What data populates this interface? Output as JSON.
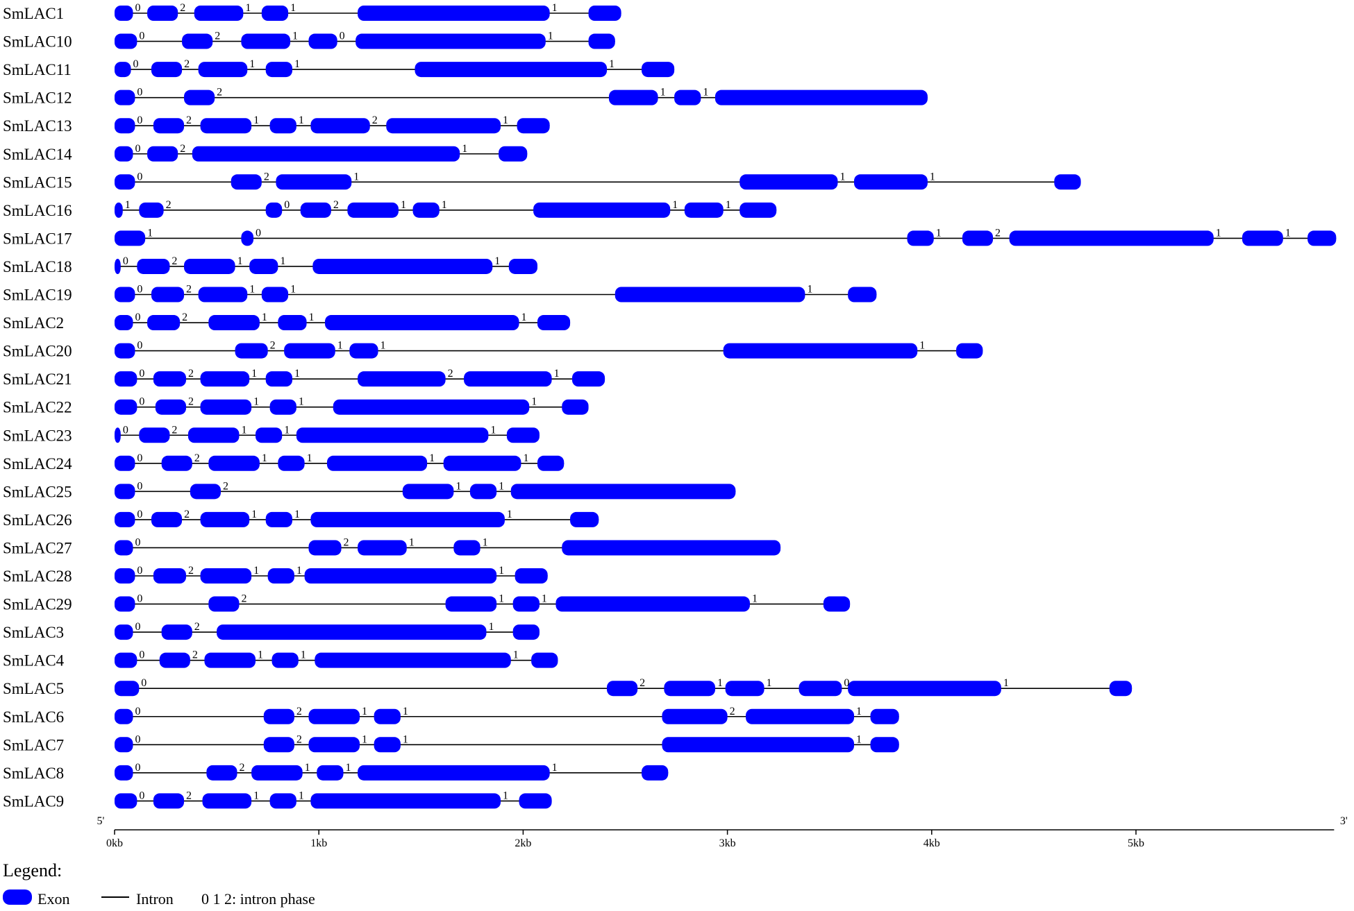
{
  "diagram": {
    "unit": "kb",
    "exon_color": "#0000ff",
    "intron_color": "#000000",
    "axis": {
      "end_labels": [
        "5'",
        "3'"
      ],
      "ticks": [
        {
          "value": 0,
          "label": "0kb"
        },
        {
          "value": 1,
          "label": "1kb"
        },
        {
          "value": 2,
          "label": "2kb"
        },
        {
          "value": 3,
          "label": "3kb"
        },
        {
          "value": 4,
          "label": "4kb"
        },
        {
          "value": 5,
          "label": "5kb"
        }
      ],
      "max": 5.97
    },
    "genes": [
      {
        "name": "SmLAC1",
        "exons": [
          [
            0,
            0.09
          ],
          [
            0.16,
            0.31
          ],
          [
            0.39,
            0.63
          ],
          [
            0.72,
            0.85
          ],
          [
            1.19,
            2.13
          ],
          [
            2.32,
            2.48
          ]
        ],
        "phases": [
          "0",
          "2",
          "1",
          "1",
          "1"
        ]
      },
      {
        "name": "SmLAC10",
        "exons": [
          [
            0,
            0.11
          ],
          [
            0.33,
            0.48
          ],
          [
            0.62,
            0.86
          ],
          [
            0.95,
            1.09
          ],
          [
            1.18,
            2.11
          ],
          [
            2.32,
            2.45
          ]
        ],
        "phases": [
          "0",
          "2",
          "1",
          "0",
          "1"
        ]
      },
      {
        "name": "SmLAC11",
        "exons": [
          [
            0,
            0.08
          ],
          [
            0.18,
            0.33
          ],
          [
            0.41,
            0.65
          ],
          [
            0.74,
            0.87
          ],
          [
            1.47,
            2.41
          ],
          [
            2.58,
            2.74
          ]
        ],
        "phases": [
          "0",
          "2",
          "1",
          "1",
          "1"
        ]
      },
      {
        "name": "SmLAC12",
        "exons": [
          [
            0,
            0.1
          ],
          [
            0.34,
            0.49
          ],
          [
            2.42,
            2.66
          ],
          [
            2.74,
            2.87
          ],
          [
            2.94,
            3.98
          ]
        ],
        "phases": [
          "0",
          "2",
          "1",
          "1"
        ]
      },
      {
        "name": "SmLAC13",
        "exons": [
          [
            0,
            0.1
          ],
          [
            0.19,
            0.34
          ],
          [
            0.42,
            0.67
          ],
          [
            0.76,
            0.89
          ],
          [
            0.96,
            1.25
          ],
          [
            1.33,
            1.89
          ],
          [
            1.97,
            2.13
          ]
        ],
        "phases": [
          "0",
          "2",
          "1",
          "1",
          "2",
          "1"
        ]
      },
      {
        "name": "SmLAC14",
        "exons": [
          [
            0,
            0.09
          ],
          [
            0.16,
            0.31
          ],
          [
            0.38,
            1.69
          ],
          [
            1.88,
            2.02
          ]
        ],
        "phases": [
          "0",
          "2",
          "1"
        ]
      },
      {
        "name": "SmLAC15",
        "exons": [
          [
            0,
            0.1
          ],
          [
            0.57,
            0.72
          ],
          [
            0.79,
            1.16
          ],
          [
            3.06,
            3.54
          ],
          [
            3.62,
            3.98
          ],
          [
            4.6,
            4.73
          ]
        ],
        "phases": [
          "0",
          "2",
          "1",
          "1",
          "1"
        ]
      },
      {
        "name": "SmLAC16",
        "exons": [
          [
            0,
            0.04
          ],
          [
            0.12,
            0.24
          ],
          [
            0.74,
            0.82
          ],
          [
            0.91,
            1.06
          ],
          [
            1.14,
            1.39
          ],
          [
            1.46,
            1.59
          ],
          [
            2.05,
            2.72
          ],
          [
            2.79,
            2.98
          ],
          [
            3.06,
            3.24
          ]
        ],
        "phases": [
          "1",
          "2",
          "0",
          "2",
          "1",
          "1",
          "1",
          "1"
        ]
      },
      {
        "name": "SmLAC17",
        "exons": [
          [
            0,
            0.15
          ],
          [
            0.62,
            0.68
          ],
          [
            3.88,
            4.01
          ],
          [
            4.15,
            4.3
          ],
          [
            4.38,
            5.38
          ],
          [
            5.52,
            5.72
          ],
          [
            5.84,
            5.98
          ]
        ],
        "phases": [
          "1",
          "0",
          "1",
          "2",
          "1",
          "1"
        ]
      },
      {
        "name": "SmLAC18",
        "exons": [
          [
            0,
            0.03
          ],
          [
            0.11,
            0.27
          ],
          [
            0.34,
            0.59
          ],
          [
            0.66,
            0.8
          ],
          [
            0.97,
            1.85
          ],
          [
            1.93,
            2.07
          ]
        ],
        "phases": [
          "0",
          "2",
          "1",
          "1",
          "1"
        ]
      },
      {
        "name": "SmLAC19",
        "exons": [
          [
            0,
            0.1
          ],
          [
            0.18,
            0.34
          ],
          [
            0.41,
            0.65
          ],
          [
            0.72,
            0.85
          ],
          [
            2.45,
            3.38
          ],
          [
            3.59,
            3.73
          ]
        ],
        "phases": [
          "0",
          "2",
          "1",
          "1",
          "1"
        ]
      },
      {
        "name": "SmLAC2",
        "exons": [
          [
            0,
            0.09
          ],
          [
            0.16,
            0.32
          ],
          [
            0.46,
            0.71
          ],
          [
            0.8,
            0.94
          ],
          [
            1.03,
            1.98
          ],
          [
            2.07,
            2.23
          ]
        ],
        "phases": [
          "0",
          "2",
          "1",
          "1",
          "1"
        ]
      },
      {
        "name": "SmLAC20",
        "exons": [
          [
            0,
            0.1
          ],
          [
            0.59,
            0.75
          ],
          [
            0.83,
            1.08
          ],
          [
            1.15,
            1.29
          ],
          [
            2.98,
            3.93
          ],
          [
            4.12,
            4.25
          ]
        ],
        "phases": [
          "0",
          "2",
          "1",
          "1",
          "1"
        ]
      },
      {
        "name": "SmLAC21",
        "exons": [
          [
            0,
            0.11
          ],
          [
            0.19,
            0.35
          ],
          [
            0.42,
            0.66
          ],
          [
            0.74,
            0.87
          ],
          [
            1.19,
            1.62
          ],
          [
            1.71,
            2.14
          ],
          [
            2.24,
            2.4
          ]
        ],
        "phases": [
          "0",
          "2",
          "1",
          "1",
          "2",
          "1"
        ]
      },
      {
        "name": "SmLAC22",
        "exons": [
          [
            0,
            0.11
          ],
          [
            0.2,
            0.35
          ],
          [
            0.42,
            0.67
          ],
          [
            0.76,
            0.89
          ],
          [
            1.07,
            2.03
          ],
          [
            2.19,
            2.32
          ]
        ],
        "phases": [
          "0",
          "2",
          "1",
          "1",
          "1"
        ]
      },
      {
        "name": "SmLAC23",
        "exons": [
          [
            0,
            0.03
          ],
          [
            0.12,
            0.27
          ],
          [
            0.36,
            0.61
          ],
          [
            0.69,
            0.82
          ],
          [
            0.89,
            1.83
          ],
          [
            1.92,
            2.08
          ]
        ],
        "phases": [
          "0",
          "2",
          "1",
          "1",
          "1"
        ]
      },
      {
        "name": "SmLAC24",
        "exons": [
          [
            0,
            0.1
          ],
          [
            0.23,
            0.38
          ],
          [
            0.46,
            0.71
          ],
          [
            0.8,
            0.93
          ],
          [
            1.04,
            1.53
          ],
          [
            1.61,
            1.99
          ],
          [
            2.07,
            2.2
          ]
        ],
        "phases": [
          "0",
          "2",
          "1",
          "1",
          "1",
          "1"
        ]
      },
      {
        "name": "SmLAC25",
        "exons": [
          [
            0,
            0.1
          ],
          [
            0.37,
            0.52
          ],
          [
            1.41,
            1.66
          ],
          [
            1.74,
            1.87
          ],
          [
            1.94,
            3.04
          ]
        ],
        "phases": [
          "0",
          "2",
          "1",
          "1"
        ]
      },
      {
        "name": "SmLAC26",
        "exons": [
          [
            0,
            0.1
          ],
          [
            0.18,
            0.33
          ],
          [
            0.42,
            0.66
          ],
          [
            0.74,
            0.87
          ],
          [
            0.96,
            1.91
          ],
          [
            2.23,
            2.37
          ]
        ],
        "phases": [
          "0",
          "2",
          "1",
          "1",
          "1"
        ]
      },
      {
        "name": "SmLAC27",
        "exons": [
          [
            0,
            0.09
          ],
          [
            0.95,
            1.11
          ],
          [
            1.19,
            1.43
          ],
          [
            1.66,
            1.79
          ],
          [
            2.19,
            3.26
          ]
        ],
        "phases": [
          "0",
          "2",
          "1",
          "1"
        ]
      },
      {
        "name": "SmLAC28",
        "exons": [
          [
            0,
            0.1
          ],
          [
            0.19,
            0.35
          ],
          [
            0.42,
            0.67
          ],
          [
            0.75,
            0.88
          ],
          [
            0.93,
            1.87
          ],
          [
            1.96,
            2.12
          ]
        ],
        "phases": [
          "0",
          "2",
          "1",
          "1",
          "1"
        ]
      },
      {
        "name": "SmLAC29",
        "exons": [
          [
            0,
            0.1
          ],
          [
            0.46,
            0.61
          ],
          [
            1.62,
            1.87
          ],
          [
            1.95,
            2.08
          ],
          [
            2.16,
            3.11
          ],
          [
            3.47,
            3.6
          ]
        ],
        "phases": [
          "0",
          "2",
          "1",
          "1",
          "1"
        ]
      },
      {
        "name": "SmLAC3",
        "exons": [
          [
            0,
            0.09
          ],
          [
            0.23,
            0.38
          ],
          [
            0.5,
            1.82
          ],
          [
            1.95,
            2.08
          ]
        ],
        "phases": [
          "0",
          "2",
          "1"
        ]
      },
      {
        "name": "SmLAC4",
        "exons": [
          [
            0,
            0.11
          ],
          [
            0.22,
            0.37
          ],
          [
            0.44,
            0.69
          ],
          [
            0.77,
            0.9
          ],
          [
            0.98,
            1.94
          ],
          [
            2.04,
            2.17
          ]
        ],
        "phases": [
          "0",
          "2",
          "1",
          "1",
          "1"
        ]
      },
      {
        "name": "SmLAC5",
        "exons": [
          [
            0,
            0.12
          ],
          [
            2.41,
            2.56
          ],
          [
            2.69,
            2.94
          ],
          [
            2.99,
            3.18
          ],
          [
            3.35,
            3.56
          ],
          [
            3.59,
            4.34
          ],
          [
            4.87,
            4.98
          ]
        ],
        "phases": [
          "0",
          "2",
          "1",
          "1",
          "0",
          "1"
        ]
      },
      {
        "name": "SmLAC6",
        "exons": [
          [
            0,
            0.09
          ],
          [
            0.73,
            0.88
          ],
          [
            0.95,
            1.2
          ],
          [
            1.27,
            1.4
          ],
          [
            2.68,
            3.0
          ],
          [
            3.09,
            3.62
          ],
          [
            3.7,
            3.84
          ]
        ],
        "phases": [
          "0",
          "2",
          "1",
          "1",
          "2",
          "1"
        ]
      },
      {
        "name": "SmLAC7",
        "exons": [
          [
            0,
            0.09
          ],
          [
            0.73,
            0.88
          ],
          [
            0.95,
            1.2
          ],
          [
            1.27,
            1.4
          ],
          [
            2.68,
            3.62
          ],
          [
            3.7,
            3.84
          ]
        ],
        "phases": [
          "0",
          "2",
          "1",
          "1",
          "1"
        ]
      },
      {
        "name": "SmLAC8",
        "exons": [
          [
            0,
            0.09
          ],
          [
            0.45,
            0.6
          ],
          [
            0.67,
            0.92
          ],
          [
            0.99,
            1.12
          ],
          [
            1.19,
            2.13
          ],
          [
            2.58,
            2.71
          ]
        ],
        "phases": [
          "0",
          "2",
          "1",
          "1",
          "1"
        ]
      },
      {
        "name": "SmLAC9",
        "exons": [
          [
            0,
            0.11
          ],
          [
            0.19,
            0.34
          ],
          [
            0.43,
            0.67
          ],
          [
            0.76,
            0.89
          ],
          [
            0.96,
            1.89
          ],
          [
            1.98,
            2.14
          ]
        ],
        "phases": [
          "0",
          "2",
          "1",
          "1",
          "1"
        ]
      }
    ]
  },
  "legend": {
    "title": "Legend:",
    "exon_label": "Exon",
    "intron_label": "Intron",
    "phase_label": "0 1 2: intron phase"
  }
}
